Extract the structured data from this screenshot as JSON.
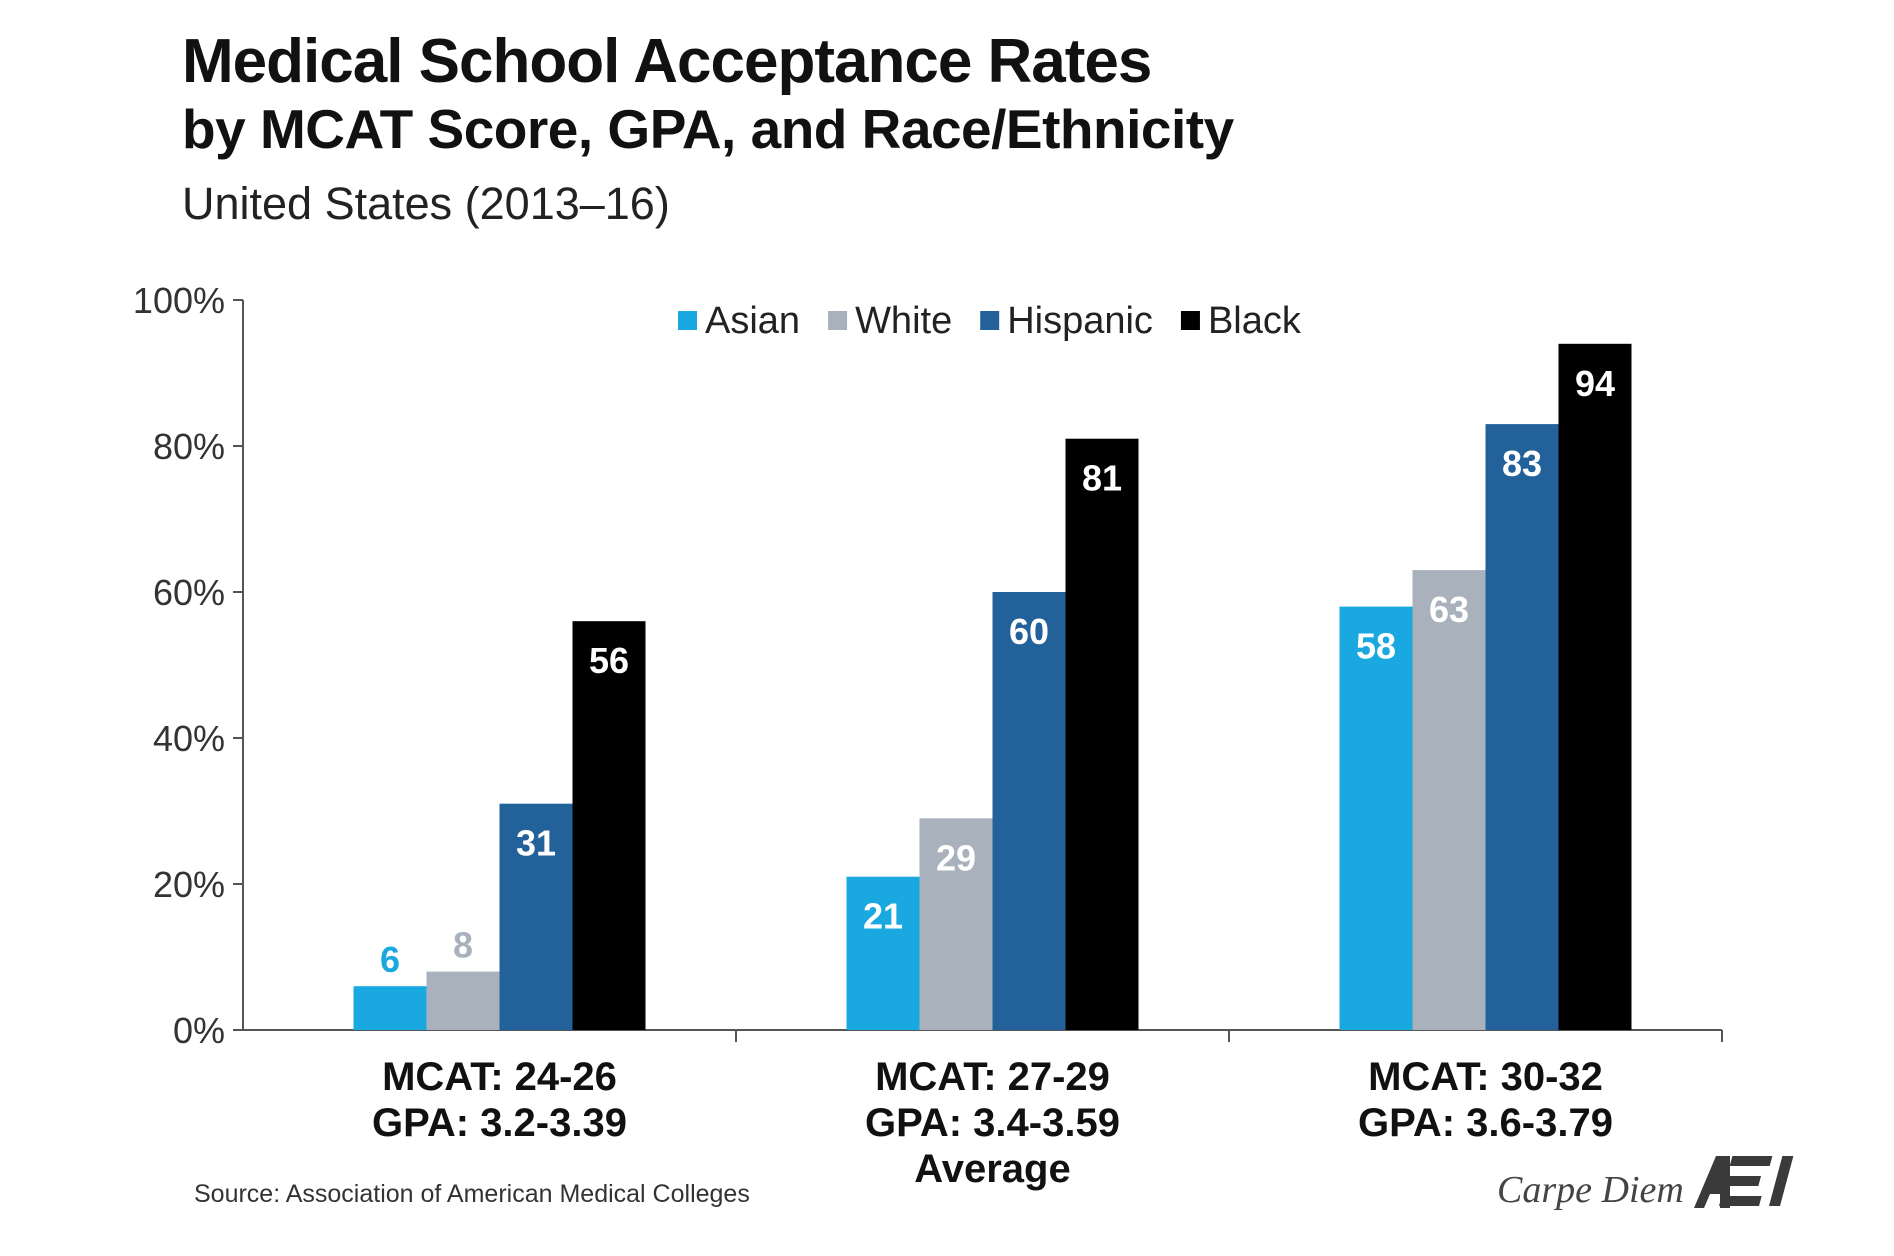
{
  "header": {
    "title": "Medical School Acceptance Rates",
    "title_line2": "by MCAT Score, GPA, and Race/Ethnicity",
    "subtitle": "United States (2013–16)"
  },
  "footer": {
    "source": "Source: Association of American Medical Colleges",
    "brand": "Carpe Diem",
    "logo_text": "AEI"
  },
  "colors": {
    "Asian": "#1aa8e0",
    "White": "#a9b2bc",
    "Hispanic": "#23619a",
    "Black": "#000000"
  },
  "chart_data": {
    "type": "bar",
    "categories": [
      [
        "MCAT: 24-26",
        "GPA: 3.2-3.39"
      ],
      [
        "MCAT: 27-29",
        "GPA: 3.4-3.59",
        "Average"
      ],
      [
        "MCAT: 30-32",
        "GPA: 3.6-3.79"
      ]
    ],
    "series": [
      {
        "name": "Asian",
        "values": [
          6,
          21,
          58
        ]
      },
      {
        "name": "White",
        "values": [
          8,
          29,
          63
        ]
      },
      {
        "name": "Hispanic",
        "values": [
          31,
          60,
          83
        ]
      },
      {
        "name": "Black",
        "values": [
          56,
          81,
          94
        ]
      }
    ],
    "data_labels": [
      [
        "6",
        "21",
        "58"
      ],
      [
        "8",
        "29",
        "63"
      ],
      [
        "31",
        "60",
        "83"
      ],
      [
        "56",
        "81",
        "94"
      ]
    ],
    "ylim": [
      0,
      100
    ],
    "yticks": [
      0,
      20,
      40,
      60,
      80,
      100
    ],
    "ytick_labels": [
      "0%",
      "20%",
      "40%",
      "60%",
      "80%",
      "100%"
    ],
    "legend_position": "top",
    "grid": false
  }
}
